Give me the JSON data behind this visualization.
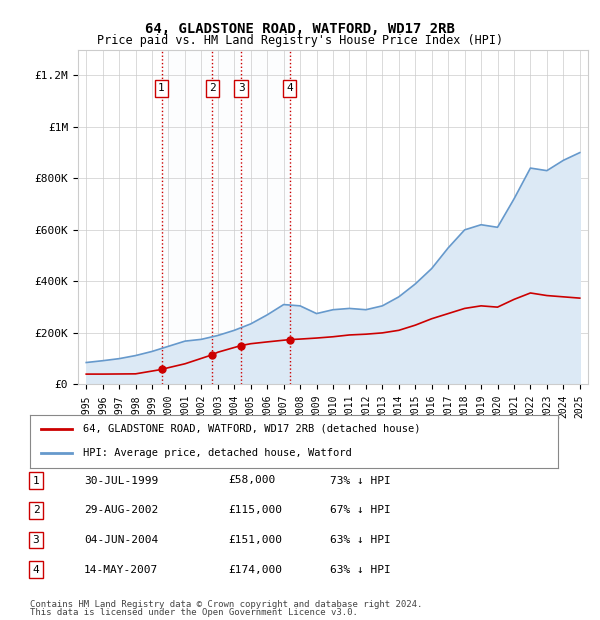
{
  "title1": "64, GLADSTONE ROAD, WATFORD, WD17 2RB",
  "title2": "Price paid vs. HM Land Registry's House Price Index (HPI)",
  "ylabel_ticks": [
    "£0",
    "£200K",
    "£400K",
    "£600K",
    "£800K",
    "£1M",
    "£1.2M"
  ],
  "ytick_values": [
    0,
    200000,
    400000,
    600000,
    800000,
    1000000,
    1200000
  ],
  "ylim": [
    0,
    1300000
  ],
  "xlim_start": 1994.5,
  "xlim_end": 2025.5,
  "sale_dates": [
    1999.58,
    2002.66,
    2004.42,
    2007.37
  ],
  "sale_prices": [
    58000,
    115000,
    151000,
    174000
  ],
  "sale_labels": [
    "1",
    "2",
    "3",
    "4"
  ],
  "legend_line1": "64, GLADSTONE ROAD, WATFORD, WD17 2RB (detached house)",
  "legend_line2": "HPI: Average price, detached house, Watford",
  "table_rows": [
    [
      "1",
      "30-JUL-1999",
      "£58,000",
      "73% ↓ HPI"
    ],
    [
      "2",
      "29-AUG-2002",
      "£115,000",
      "67% ↓ HPI"
    ],
    [
      "3",
      "04-JUN-2004",
      "£151,000",
      "63% ↓ HPI"
    ],
    [
      "4",
      "14-MAY-2007",
      "£174,000",
      "63% ↓ HPI"
    ]
  ],
  "footnote1": "Contains HM Land Registry data © Crown copyright and database right 2024.",
  "footnote2": "This data is licensed under the Open Government Licence v3.0.",
  "sale_color": "#cc0000",
  "hpi_color": "#6699cc",
  "hpi_shade_color": "#dce9f5",
  "vline_color": "#cc0000",
  "grid_color": "#cccccc",
  "bg_color": "#ffffff",
  "hpi_years": [
    1995,
    1996,
    1997,
    1998,
    1999,
    2000,
    2001,
    2002,
    2003,
    2004,
    2005,
    2006,
    2007,
    2008,
    2009,
    2010,
    2011,
    2012,
    2013,
    2014,
    2015,
    2016,
    2017,
    2018,
    2019,
    2020,
    2021,
    2022,
    2023,
    2024,
    2025
  ],
  "hpi_values": [
    85000,
    92000,
    100000,
    112000,
    128000,
    148000,
    168000,
    175000,
    190000,
    210000,
    235000,
    270000,
    310000,
    305000,
    275000,
    290000,
    295000,
    290000,
    305000,
    340000,
    390000,
    450000,
    530000,
    600000,
    620000,
    610000,
    720000,
    840000,
    830000,
    870000,
    900000
  ],
  "sale_line_years": [
    1995.0,
    1996,
    1997,
    1998,
    1999.58,
    2000,
    2001,
    2002.66,
    2003,
    2004.42,
    2005,
    2006,
    2007.37,
    2008,
    2009,
    2010,
    2011,
    2012,
    2013,
    2014,
    2015,
    2016,
    2017,
    2018,
    2019,
    2020,
    2021,
    2022,
    2023,
    2024,
    2025
  ],
  "sale_line_values": [
    40000,
    40000,
    40500,
    41000,
    58000,
    65000,
    80000,
    115000,
    125000,
    151000,
    158000,
    165000,
    174000,
    176000,
    180000,
    185000,
    192000,
    195000,
    200000,
    210000,
    230000,
    255000,
    275000,
    295000,
    305000,
    300000,
    330000,
    355000,
    345000,
    340000,
    335000
  ]
}
